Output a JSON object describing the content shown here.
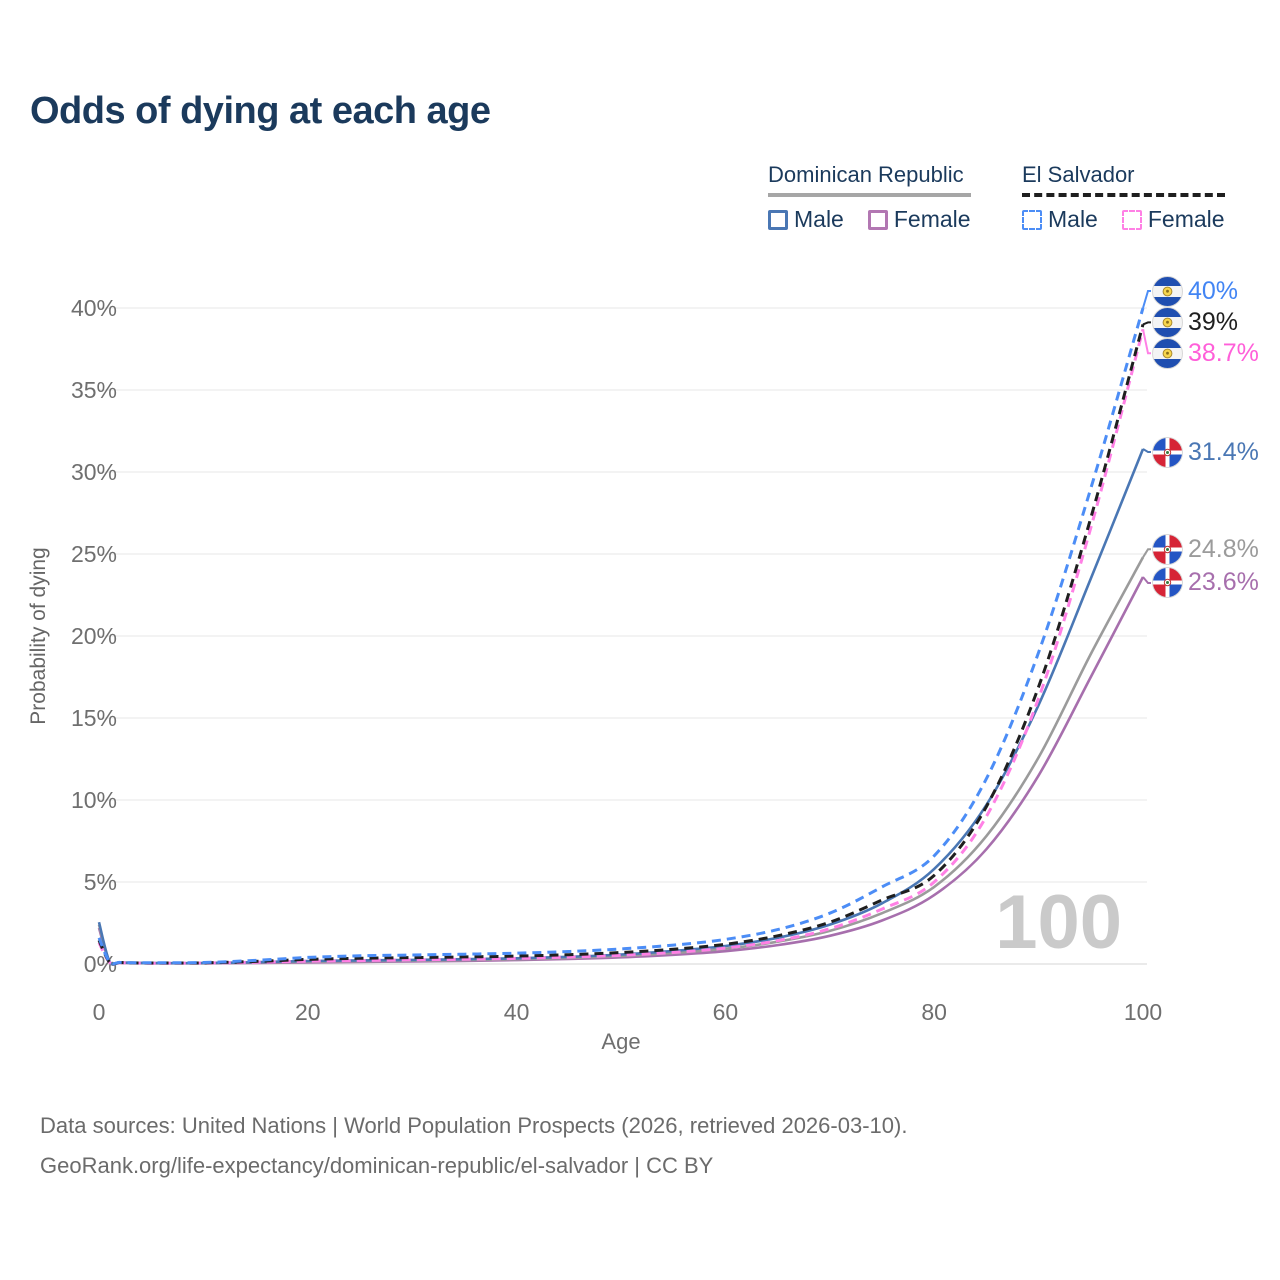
{
  "title": "Odds of dying at each age",
  "legend": {
    "groups": [
      {
        "label": "Dominican Republic",
        "line_style": "solid",
        "underline_color": "#a6a6a6",
        "items": [
          {
            "label": "Male",
            "color": "#4a77b4"
          },
          {
            "label": "Female",
            "color": "#b277b2"
          }
        ]
      },
      {
        "label": "El Salvador",
        "line_style": "dashed",
        "underline_color": "#1f1f1f",
        "items": [
          {
            "label": "Male",
            "color": "#4c8df6"
          },
          {
            "label": "Female",
            "color": "#ff80e5"
          }
        ]
      }
    ]
  },
  "watermark": "100",
  "footer": {
    "line1": "Data sources: United Nations | World Population Prospects (2026, retrieved 2026-03-10).",
    "line2": "GeoRank.org/life-expectancy/dominican-republic/el-salvador | CC BY"
  },
  "chart_data": {
    "type": "line",
    "title": "Odds of dying at each age",
    "xlabel": "Age",
    "ylabel": "Probability of dying",
    "xlim": [
      0,
      100
    ],
    "ylim": [
      0,
      41
    ],
    "xticks": [
      0,
      20,
      40,
      60,
      80,
      100
    ],
    "yticks": [
      0,
      5,
      10,
      15,
      20,
      25,
      30,
      35,
      40
    ],
    "ytick_suffix": "%",
    "grid": "horizontal",
    "legend_position": "top-right",
    "x": [
      0,
      1,
      2,
      3,
      5,
      10,
      15,
      20,
      25,
      30,
      35,
      40,
      45,
      50,
      55,
      60,
      65,
      70,
      75,
      80,
      85,
      90,
      95,
      100
    ],
    "series": [
      {
        "id": "do-female",
        "name": "Dominican Republic — Female",
        "flag": "do",
        "color": "#a76fad",
        "dashed": false,
        "end_label": "23.6%",
        "end_label_color": "#a76fad",
        "values": [
          2.2,
          0.13,
          0.08,
          0.06,
          0.04,
          0.04,
          0.07,
          0.1,
          0.13,
          0.16,
          0.19,
          0.24,
          0.31,
          0.41,
          0.56,
          0.78,
          1.15,
          1.72,
          2.65,
          4.2,
          7.0,
          11.5,
          17.5,
          23.6
        ]
      },
      {
        "id": "do-all",
        "name": "Dominican Republic — Both sexes",
        "flag": "do",
        "color": "#9b9b9b",
        "dashed": false,
        "end_label": "24.8%",
        "end_label_color": "#9b9b9b",
        "values": [
          2.4,
          0.15,
          0.09,
          0.07,
          0.05,
          0.05,
          0.09,
          0.14,
          0.17,
          0.2,
          0.24,
          0.29,
          0.37,
          0.49,
          0.67,
          0.93,
          1.36,
          2.02,
          3.1,
          4.7,
          7.8,
          12.6,
          18.9,
          24.8
        ]
      },
      {
        "id": "do-male",
        "name": "Dominican Republic — Male",
        "flag": "do",
        "color": "#4a77b4",
        "dashed": false,
        "end_label": "31.4%",
        "end_label_color": "#4a77b4",
        "values": [
          2.55,
          0.17,
          0.1,
          0.08,
          0.06,
          0.06,
          0.11,
          0.18,
          0.22,
          0.25,
          0.29,
          0.35,
          0.44,
          0.58,
          0.8,
          1.1,
          1.6,
          2.4,
          3.7,
          5.8,
          9.7,
          15.8,
          23.5,
          31.4
        ]
      },
      {
        "id": "sv-female",
        "name": "El Salvador — Female",
        "flag": "sv",
        "color": "#ff80e5",
        "dashed": true,
        "end_label": "38.7%",
        "end_label_color": "#ff5fd9",
        "values": [
          1.3,
          0.11,
          0.08,
          0.06,
          0.05,
          0.06,
          0.11,
          0.17,
          0.21,
          0.25,
          0.29,
          0.34,
          0.42,
          0.53,
          0.7,
          0.97,
          1.42,
          2.15,
          3.35,
          5.0,
          9.0,
          16.2,
          26.6,
          38.7
        ]
      },
      {
        "id": "sv-all",
        "name": "El Salvador — Both sexes",
        "flag": "sv",
        "color": "#1f1f1f",
        "dashed": true,
        "end_label": "39%",
        "end_label_color": "#1f1f1f",
        "values": [
          1.45,
          0.12,
          0.09,
          0.07,
          0.06,
          0.07,
          0.16,
          0.28,
          0.35,
          0.39,
          0.43,
          0.48,
          0.57,
          0.7,
          0.9,
          1.2,
          1.72,
          2.55,
          3.9,
          5.4,
          9.6,
          16.9,
          27.2,
          39.0
        ]
      },
      {
        "id": "sv-male",
        "name": "El Salvador — Male",
        "flag": "sv",
        "color": "#4c8df6",
        "dashed": true,
        "end_label": "40%",
        "end_label_color": "#4285f4",
        "values": [
          1.6,
          0.14,
          0.1,
          0.08,
          0.08,
          0.09,
          0.22,
          0.4,
          0.5,
          0.55,
          0.6,
          0.66,
          0.76,
          0.92,
          1.15,
          1.5,
          2.1,
          3.1,
          4.7,
          6.6,
          11.3,
          19.0,
          29.0,
          40.0
        ]
      }
    ]
  }
}
